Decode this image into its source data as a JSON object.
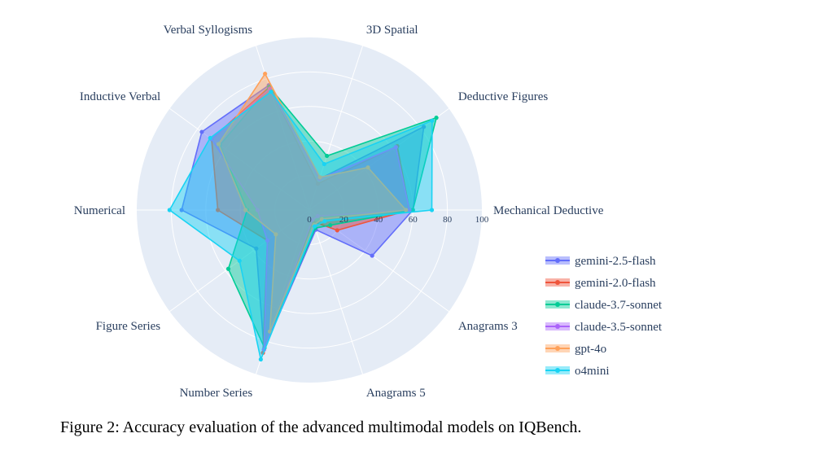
{
  "caption": "Figure 2: Accuracy evaluation of the advanced multimodal models on IQBench.",
  "chart_data": {
    "type": "radar",
    "axes": [
      "Mechanical Deductive",
      "Deductive Figures",
      "3D Spatial",
      "Verbal Syllogisms",
      "Inductive Verbal",
      "Numerical",
      "Figure Series",
      "Number Series",
      "Anagrams 5",
      "Anagrams 3"
    ],
    "radial_range": [
      0,
      100
    ],
    "radial_ticks": [
      0,
      20,
      40,
      60,
      80,
      100
    ],
    "series": [
      {
        "name": "gemini-2.5-flash",
        "color": "#636efa",
        "values": [
          60,
          82,
          19,
          76,
          77,
          74,
          38,
          85,
          12,
          45
        ]
      },
      {
        "name": "gemini-2.0-flash",
        "color": "#ef553b",
        "values": [
          58,
          63,
          16,
          75,
          70,
          53,
          30,
          87,
          7,
          20
        ]
      },
      {
        "name": "claude-3.7-sonnet",
        "color": "#00cc96",
        "values": [
          60,
          91,
          33,
          75,
          64,
          36,
          58,
          84,
          11,
          15
        ]
      },
      {
        "name": "claude-3.5-sonnet",
        "color": "#ab63fa",
        "values": [
          58,
          62,
          19,
          74,
          70,
          30,
          30,
          85,
          6,
          6
        ]
      },
      {
        "name": "gpt-4o",
        "color": "#ffa15a",
        "values": [
          56,
          42,
          20,
          83,
          65,
          37,
          24,
          74,
          9,
          9
        ]
      },
      {
        "name": "o4mini",
        "color": "#19d3f3",
        "values": [
          71,
          88,
          28,
          72,
          71,
          81,
          50,
          91,
          10,
          11
        ]
      }
    ]
  }
}
